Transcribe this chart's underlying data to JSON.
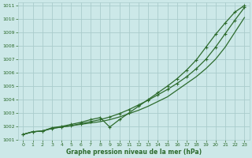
{
  "bg_color": "#cce8e8",
  "grid_color": "#aacccc",
  "line_color": "#2d6b2d",
  "xlabel": "Graphe pression niveau de la mer (hPa)",
  "xlim": [
    -0.5,
    23.5
  ],
  "ylim": [
    1001.0,
    1011.2
  ],
  "yticks": [
    1001,
    1002,
    1003,
    1004,
    1005,
    1006,
    1007,
    1008,
    1009,
    1010,
    1011
  ],
  "xticks": [
    0,
    1,
    2,
    3,
    4,
    5,
    6,
    7,
    8,
    9,
    10,
    11,
    12,
    13,
    14,
    15,
    16,
    17,
    18,
    19,
    20,
    21,
    22,
    23
  ],
  "line1_y": [
    1001.4,
    1001.6,
    1001.65,
    1001.85,
    1001.95,
    1002.05,
    1002.15,
    1002.25,
    1002.35,
    1002.5,
    1002.7,
    1002.95,
    1003.2,
    1003.5,
    1003.85,
    1004.2,
    1004.7,
    1005.2,
    1005.7,
    1006.3,
    1007.0,
    1007.9,
    1009.0,
    1010.1
  ],
  "line2_y": [
    1001.4,
    1001.6,
    1001.65,
    1001.85,
    1001.95,
    1002.05,
    1002.2,
    1002.35,
    1002.5,
    1002.7,
    1002.95,
    1003.25,
    1003.6,
    1003.95,
    1004.35,
    1004.75,
    1005.2,
    1005.7,
    1006.3,
    1007.0,
    1007.9,
    1008.9,
    1009.9,
    1010.85
  ],
  "line3_y": [
    1001.4,
    1001.6,
    1001.65,
    1001.9,
    1002.0,
    1002.15,
    1002.3,
    1002.5,
    1002.65,
    1001.95,
    1002.5,
    1003.0,
    1003.5,
    1004.0,
    1004.5,
    1005.0,
    1005.55,
    1006.2,
    1006.95,
    1007.9,
    1008.85,
    1009.7,
    1010.5,
    1011.0
  ]
}
